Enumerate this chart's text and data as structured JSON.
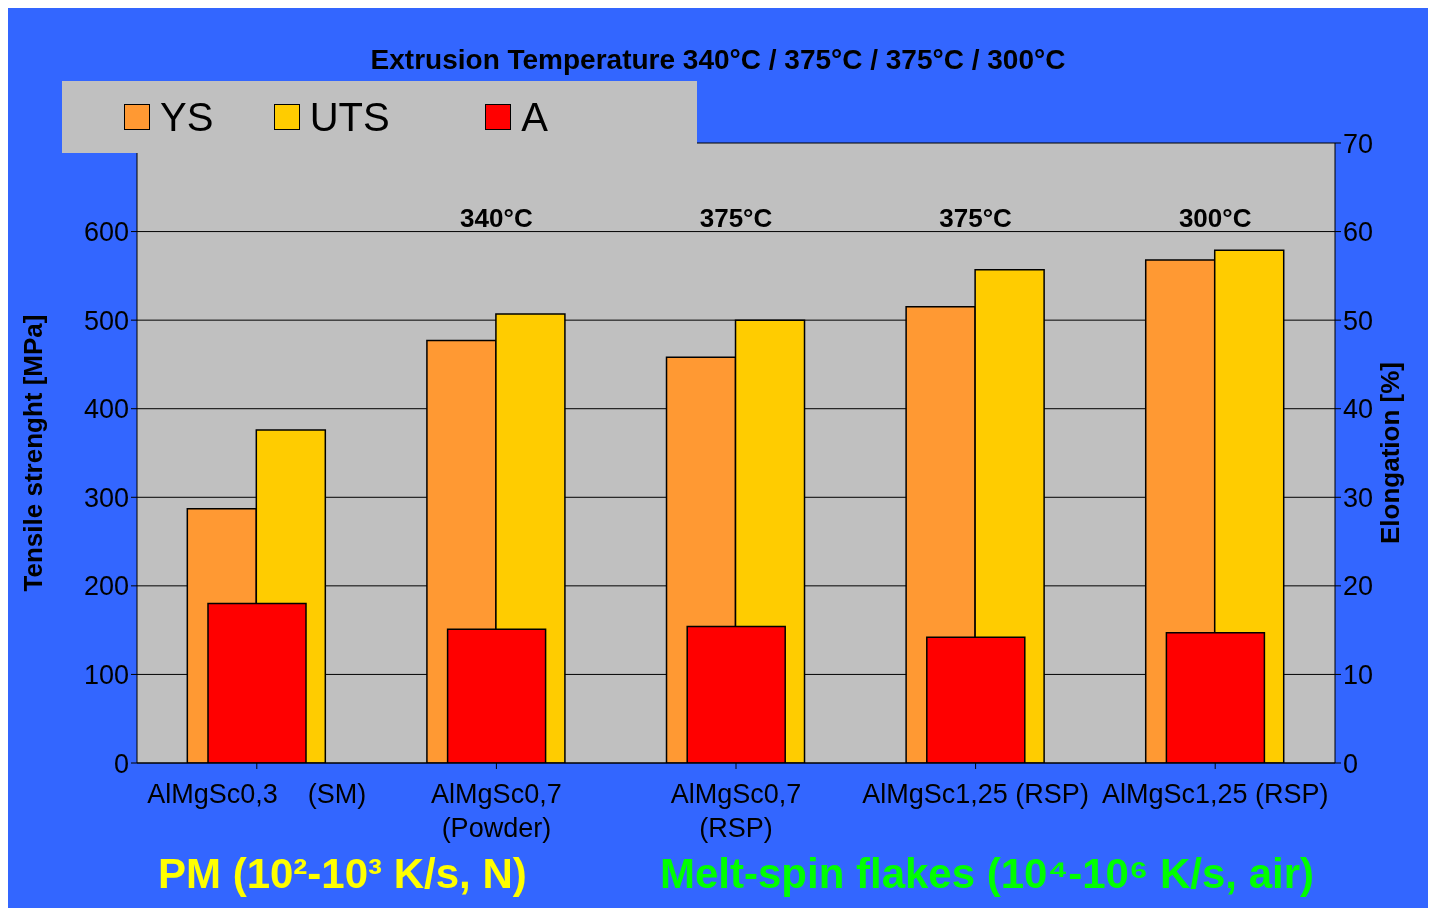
{
  "chart_data": {
    "type": "bar",
    "title": "Extrusion Temperature 340°C / 375°C / 375°C / 300°C",
    "ylabel": "Tensile strenght [MPa]",
    "y2label": "Elongation [%]",
    "categories": [
      "AlMgSc0,3    (SM)",
      "AlMgSc0,7\n(Powder)",
      "AlMgSc0,7\n(RSP)",
      "AlMgSc1,25 (RSP)",
      "AlMgSc1,25 (RSP)"
    ],
    "series": [
      {
        "name": "YS",
        "color": "#ff9933",
        "values": [
          287,
          477,
          458,
          515,
          568
        ]
      },
      {
        "name": "UTS",
        "color": "#ffcc00",
        "values": [
          376,
          507,
          500,
          557,
          579
        ]
      },
      {
        "name": "A",
        "color": "#ff0000",
        "axis": "y2",
        "values": [
          18,
          15.1,
          15.4,
          14.2,
          14.7
        ]
      }
    ],
    "ylim": [
      0,
      700
    ],
    "yticks": [
      0,
      100,
      200,
      300,
      400,
      500,
      600,
      {
        "value": 700,
        "label": null
      }
    ],
    "y2lim": [
      0,
      70
    ],
    "y2ticks": [
      0,
      10,
      20,
      30,
      40,
      50,
      60,
      70
    ],
    "grid": "y",
    "legend": "top left",
    "annotations": [
      "340°C",
      "375°C",
      "375°C",
      "300°C",
      "PM (10²-10³ K/s, N)",
      "Melt-spin flakes (10⁴-10⁶ K/s, air)"
    ]
  }
}
